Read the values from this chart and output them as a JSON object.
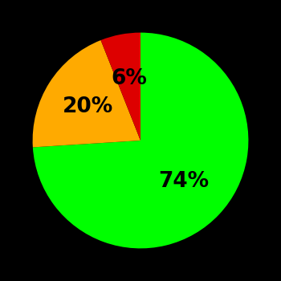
{
  "slices": [
    74,
    20,
    6
  ],
  "colors": [
    "#00ff00",
    "#ffaa00",
    "#dd0000"
  ],
  "labels": [
    "74%",
    "20%",
    "6%"
  ],
  "startangle": 90,
  "background_color": "#000000",
  "text_color": "#000000",
  "label_fontsize": 19,
  "label_fontweight": "bold",
  "label_radii": [
    0.55,
    0.58,
    0.58
  ]
}
